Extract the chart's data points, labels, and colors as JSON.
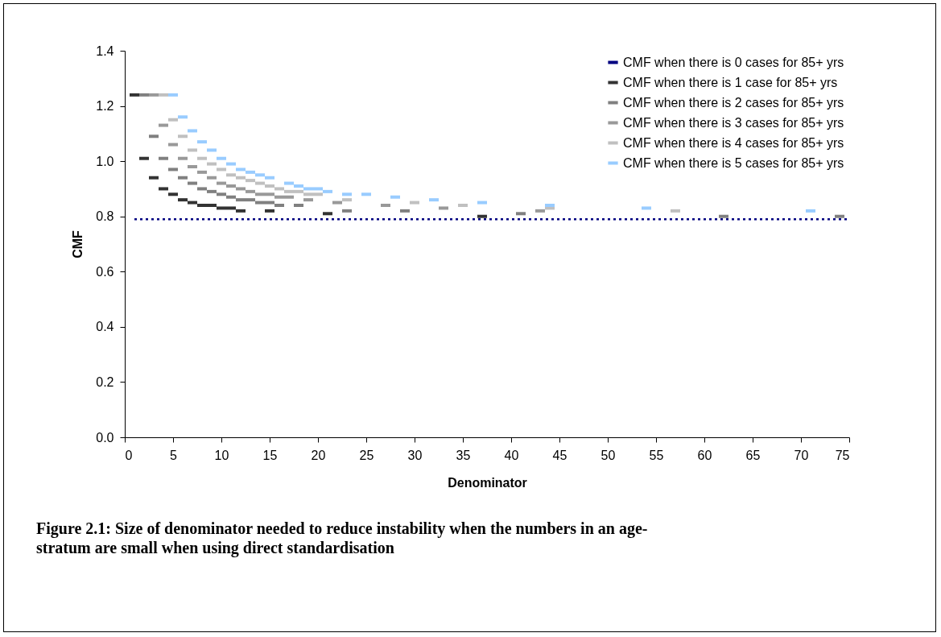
{
  "chart_data": {
    "type": "scatter",
    "annotations": [
      "Figure 2.1: Size of denominator needed to reduce instability when the numbers in an age-stratum are small when using direct standardisation"
    ],
    "xlabel": "Denominator",
    "ylabel": "CMF",
    "xlim": [
      0,
      75
    ],
    "xticks": [
      0,
      5,
      10,
      15,
      20,
      25,
      30,
      35,
      40,
      45,
      50,
      55,
      60,
      65,
      70,
      75
    ],
    "ylim": [
      0,
      1.4
    ],
    "yticks": [
      {
        "value": 0,
        "label": "0.0"
      },
      {
        "value": 0.2,
        "label": "0.2"
      },
      {
        "value": 0.4,
        "label": "0.4"
      },
      {
        "value": 0.6,
        "label": "0.6"
      },
      {
        "value": 0.8,
        "label": "0.8"
      },
      {
        "value": 1,
        "label": "1.0"
      },
      {
        "value": 1.2,
        "label": "1.2"
      },
      {
        "value": 1.4,
        "label": "1.4"
      }
    ],
    "grid": false,
    "legend": "top right",
    "series": [
      {
        "name": "CMF when there is 0 cases for 85+ yrs",
        "type": "line",
        "line_style": "dotted",
        "color": "#000080",
        "x": [
          1,
          75
        ],
        "values": [
          0.79,
          0.79
        ]
      },
      {
        "name": "CMF when there is 1 case for 85+ yrs",
        "color": "#333333",
        "x": [
          1,
          2,
          3,
          4,
          5,
          6,
          7,
          8,
          9,
          10,
          11,
          12,
          15,
          21,
          37
        ],
        "values": [
          1.24,
          1.01,
          0.94,
          0.9,
          0.88,
          0.86,
          0.85,
          0.84,
          0.84,
          0.83,
          0.83,
          0.82,
          0.82,
          0.81,
          0.8
        ]
      },
      {
        "name": "CMF when there is 2 cases for 85+ yrs",
        "color": "#808080",
        "x": [
          2,
          3,
          4,
          5,
          6,
          7,
          8,
          9,
          10,
          11,
          12,
          13,
          14,
          15,
          16,
          18,
          23,
          29,
          41,
          62,
          74
        ],
        "values": [
          1.24,
          1.09,
          1.01,
          0.97,
          0.94,
          0.92,
          0.9,
          0.89,
          0.88,
          0.87,
          0.86,
          0.86,
          0.85,
          0.85,
          0.84,
          0.84,
          0.82,
          0.82,
          0.81,
          0.8,
          0.8
        ]
      },
      {
        "name": "CMF when there is 3 cases for 85+ yrs",
        "color": "#999999",
        "x": [
          3,
          4,
          5,
          6,
          7,
          8,
          9,
          10,
          11,
          12,
          13,
          14,
          15,
          16,
          17,
          19,
          22,
          27,
          33,
          43
        ],
        "values": [
          1.24,
          1.13,
          1.06,
          1.01,
          0.98,
          0.96,
          0.94,
          0.92,
          0.91,
          0.9,
          0.89,
          0.88,
          0.88,
          0.87,
          0.87,
          0.86,
          0.85,
          0.84,
          0.83,
          0.82
        ]
      },
      {
        "name": "CMF when there is 4 cases for 85+ yrs",
        "color": "#c0c0c0",
        "x": [
          4,
          5,
          6,
          7,
          8,
          9,
          10,
          11,
          12,
          13,
          14,
          15,
          16,
          17,
          18,
          19,
          20,
          23,
          30,
          35,
          44,
          57
        ],
        "values": [
          1.24,
          1.15,
          1.09,
          1.04,
          1.01,
          0.99,
          0.97,
          0.95,
          0.94,
          0.93,
          0.92,
          0.91,
          0.9,
          0.89,
          0.89,
          0.88,
          0.88,
          0.86,
          0.85,
          0.84,
          0.83,
          0.82
        ]
      },
      {
        "name": "CMF when there is 5 cases for 85+ yrs",
        "color": "#99ccff",
        "x": [
          5,
          6,
          7,
          8,
          9,
          10,
          11,
          12,
          13,
          14,
          15,
          17,
          18,
          19,
          20,
          21,
          23,
          25,
          28,
          32,
          37,
          44,
          54,
          71
        ],
        "values": [
          1.24,
          1.16,
          1.11,
          1.07,
          1.04,
          1.01,
          0.99,
          0.97,
          0.96,
          0.95,
          0.94,
          0.92,
          0.91,
          0.9,
          0.9,
          0.89,
          0.88,
          0.88,
          0.87,
          0.86,
          0.85,
          0.84,
          0.83,
          0.82
        ]
      }
    ]
  }
}
